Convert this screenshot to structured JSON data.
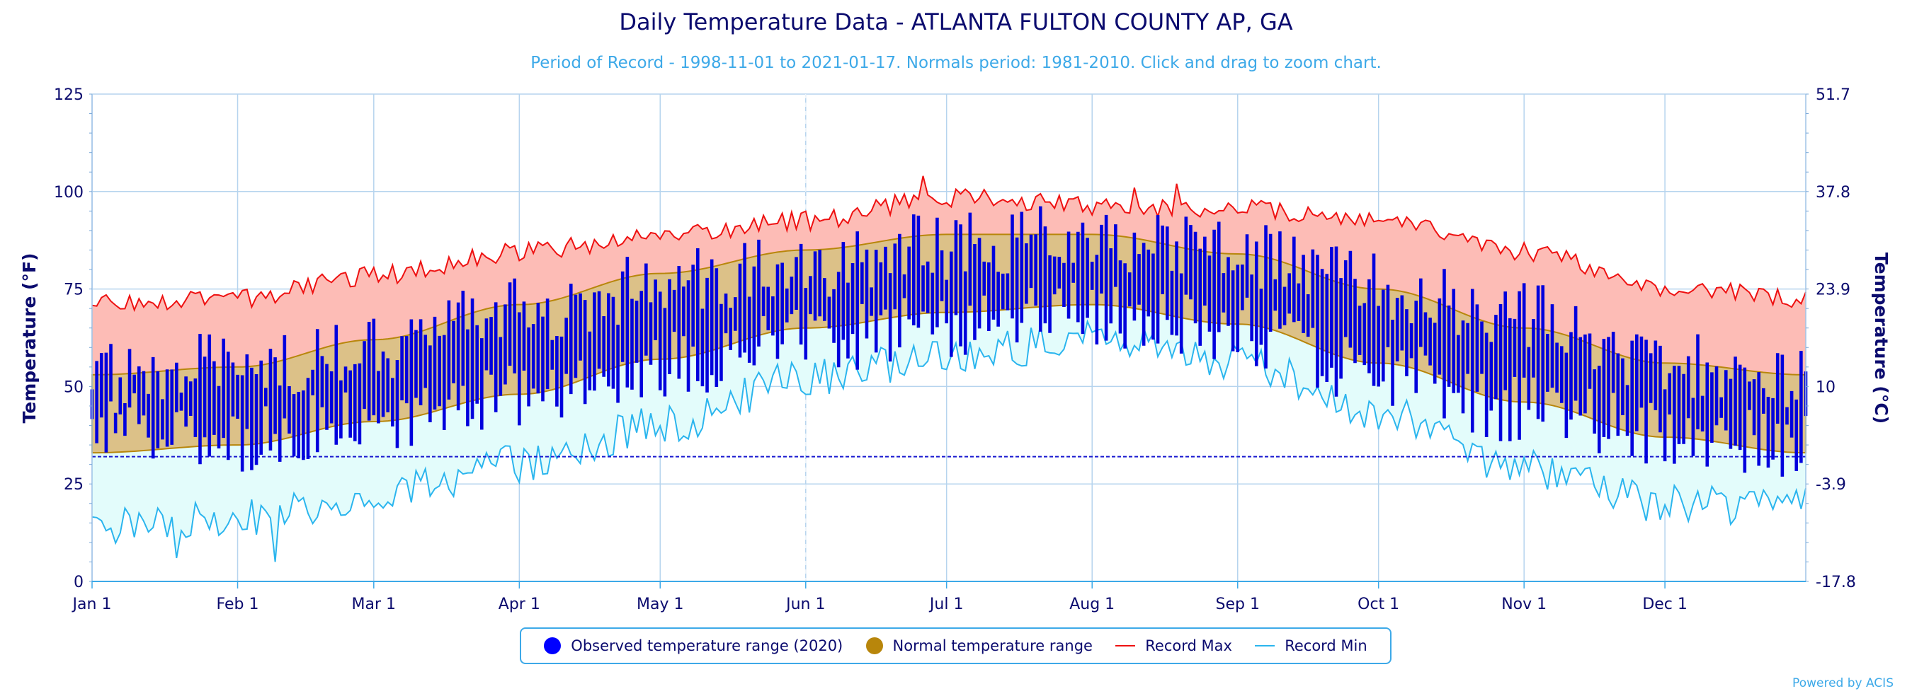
{
  "title": "Daily Temperature Data - ATLANTA FULTON COUNTY AP, GA",
  "subtitle": "Period of Record - 1998-11-01 to 2021-01-17. Normals period: 1981-2010. Click and drag to zoom chart.",
  "credit": "Powered by ACIS",
  "legend": {
    "observed": "Observed temperature range (2020)",
    "normal": "Normal temperature range",
    "record_max": "Record Max",
    "record_min": "Record Min"
  },
  "colors": {
    "observed": "#0000dd",
    "observed_legend": "#0000ff",
    "normal_fill": "#dcc188",
    "normal_line": "#b8860b",
    "record_max_line": "#ee1111",
    "record_max_fill": "#fdbcb6",
    "record_min_line": "#2bb5ee",
    "record_min_fill": "#e3fcfb",
    "axis_text": "#0b0b6e",
    "grid": "#b6d4ee",
    "freezing_line": "#1a1ad0"
  },
  "chart_data": {
    "type": "area",
    "title": "Daily Temperature Data - ATLANTA FULTON COUNTY AP, GA",
    "ylabel": "Temperature (°F)",
    "ylabel_right": "Temperature (°C)",
    "ylim": [
      0,
      125
    ],
    "y_ticks": [
      0,
      25,
      50,
      75,
      100,
      125
    ],
    "y_ticks_right": [
      "-17.8",
      "-3.9",
      "10",
      "23.9",
      "37.8",
      "51.7"
    ],
    "x_ticks": [
      "Jan 1",
      "Feb 1",
      "Mar 1",
      "Apr 1",
      "May 1",
      "Jun 1",
      "Jul 1",
      "Aug 1",
      "Sep 1",
      "Oct 1",
      "Nov 1",
      "Dec 1"
    ],
    "month_start_days": [
      1,
      32,
      61,
      92,
      122,
      153,
      183,
      214,
      245,
      275,
      306,
      336
    ],
    "days_in_year": 366,
    "freezing_line": 32,
    "grid": true,
    "legend_position": "bottom",
    "normal_max_knots": [
      [
        1,
        53
      ],
      [
        32,
        55
      ],
      [
        61,
        62
      ],
      [
        92,
        71
      ],
      [
        122,
        79
      ],
      [
        153,
        85
      ],
      [
        183,
        89
      ],
      [
        214,
        89
      ],
      [
        245,
        84
      ],
      [
        275,
        75
      ],
      [
        306,
        65
      ],
      [
        336,
        56
      ],
      [
        366,
        53
      ]
    ],
    "normal_min_knots": [
      [
        1,
        33
      ],
      [
        32,
        35
      ],
      [
        61,
        41
      ],
      [
        92,
        48
      ],
      [
        122,
        57
      ],
      [
        153,
        65
      ],
      [
        183,
        69
      ],
      [
        214,
        71
      ],
      [
        245,
        66
      ],
      [
        275,
        56
      ],
      [
        306,
        46
      ],
      [
        336,
        37
      ],
      [
        366,
        33
      ]
    ],
    "record_max_knots": [
      [
        1,
        71
      ],
      [
        32,
        72
      ],
      [
        61,
        78
      ],
      [
        92,
        84
      ],
      [
        122,
        88
      ],
      [
        153,
        92
      ],
      [
        183,
        98
      ],
      [
        214,
        96
      ],
      [
        245,
        95
      ],
      [
        275,
        92
      ],
      [
        306,
        84
      ],
      [
        336,
        75
      ],
      [
        366,
        72
      ]
    ],
    "record_min_knots": [
      [
        1,
        14
      ],
      [
        32,
        16
      ],
      [
        61,
        22
      ],
      [
        92,
        30
      ],
      [
        122,
        40
      ],
      [
        153,
        52
      ],
      [
        183,
        58
      ],
      [
        214,
        62
      ],
      [
        245,
        56
      ],
      [
        275,
        43
      ],
      [
        306,
        29
      ],
      [
        336,
        20
      ],
      [
        366,
        19
      ]
    ],
    "observed_2020_knots": [
      [
        1,
        52,
        40
      ],
      [
        32,
        55,
        37
      ],
      [
        61,
        60,
        42
      ],
      [
        92,
        70,
        48
      ],
      [
        122,
        76,
        55
      ],
      [
        153,
        80,
        62
      ],
      [
        183,
        86,
        66
      ],
      [
        214,
        89,
        69
      ],
      [
        245,
        84,
        64
      ],
      [
        275,
        76,
        54
      ],
      [
        306,
        68,
        44
      ],
      [
        336,
        56,
        38
      ],
      [
        366,
        51,
        34
      ]
    ],
    "observed_days": 366,
    "record_min_extremes": [
      [
        19,
        6
      ],
      [
        40,
        5
      ],
      [
        61,
        19
      ]
    ],
    "record_max_extremes": [
      [
        178,
        104
      ],
      [
        223,
        101
      ],
      [
        232,
        102
      ]
    ]
  }
}
